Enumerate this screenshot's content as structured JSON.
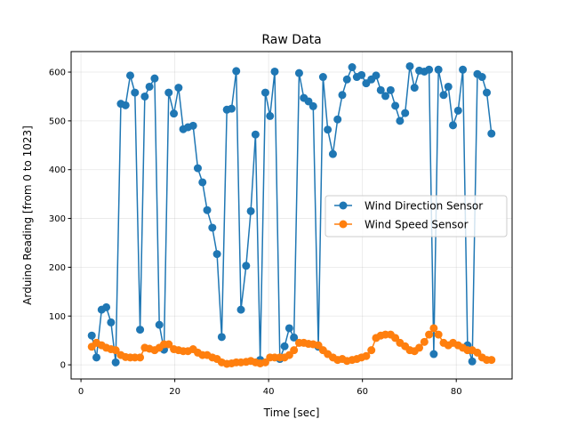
{
  "chart_data": {
    "type": "line",
    "title": "Raw Data",
    "xlabel": "Time [sec]",
    "ylabel": "Arduino Reading [from 0 to 1023]",
    "xlim": [
      -2.1,
      91.9
    ],
    "ylim": [
      -29,
      642
    ],
    "xticks": [
      0,
      20,
      40,
      60,
      80
    ],
    "yticks": [
      0,
      100,
      200,
      300,
      400,
      500,
      600
    ],
    "grid": true,
    "legend_position": "center-right",
    "x": [
      2.3,
      3.3,
      4.4,
      5.4,
      6.4,
      7.4,
      8.5,
      9.5,
      10.5,
      11.5,
      12.6,
      13.6,
      14.6,
      15.7,
      16.7,
      17.7,
      18.7,
      19.8,
      20.8,
      21.8,
      22.8,
      23.9,
      24.9,
      25.9,
      26.9,
      28.0,
      29.0,
      30.0,
      31.1,
      32.1,
      33.1,
      34.1,
      35.2,
      36.2,
      37.2,
      38.2,
      39.3,
      40.3,
      41.3,
      42.4,
      43.4,
      44.4,
      45.4,
      46.5,
      47.5,
      48.5,
      49.5,
      50.6,
      51.6,
      52.6,
      53.7,
      54.7,
      55.7,
      56.7,
      57.8,
      58.8,
      59.8,
      60.8,
      61.9,
      62.9,
      63.9,
      64.9,
      66.0,
      67.0,
      68.0,
      69.1,
      70.1,
      71.1,
      72.1,
      73.2,
      74.2,
      75.2,
      76.2,
      77.3,
      78.3,
      79.3,
      80.4,
      81.4,
      82.4,
      83.4,
      84.5,
      85.5,
      86.5,
      87.5
    ],
    "series": [
      {
        "name": "Wind Direction Sensor",
        "color": "#1f77b4",
        "values": [
          60,
          15,
          113,
          118,
          87,
          5,
          535,
          532,
          593,
          558,
          72,
          550,
          570,
          587,
          82,
          31,
          558,
          515,
          568,
          483,
          487,
          490,
          403,
          374,
          317,
          281,
          227,
          57,
          523,
          525,
          602,
          113,
          203,
          315,
          472,
          10,
          558,
          510,
          601,
          12,
          38,
          75,
          56,
          598,
          547,
          540,
          530,
          37,
          590,
          482,
          432,
          503,
          553,
          585,
          610,
          590,
          594,
          577,
          585,
          593,
          563,
          551,
          563,
          531,
          500,
          516,
          612,
          568,
          603,
          601,
          605,
          22,
          605,
          553,
          570,
          491,
          521,
          605,
          40,
          7,
          596,
          590,
          558,
          474
        ]
      },
      {
        "name": "Wind Speed Sensor",
        "color": "#ff7f0e",
        "values": [
          37,
          45,
          40,
          35,
          32,
          30,
          20,
          16,
          15,
          15,
          15,
          35,
          33,
          30,
          35,
          42,
          42,
          32,
          30,
          28,
          28,
          32,
          25,
          20,
          20,
          15,
          12,
          5,
          2,
          3,
          5,
          5,
          6,
          8,
          5,
          3,
          5,
          15,
          15,
          15,
          15,
          20,
          30,
          45,
          45,
          43,
          42,
          40,
          30,
          22,
          15,
          10,
          12,
          8,
          10,
          12,
          15,
          18,
          30,
          55,
          60,
          62,
          62,
          55,
          45,
          38,
          30,
          28,
          35,
          47,
          62,
          75,
          62,
          45,
          40,
          45,
          40,
          35,
          30,
          30,
          25,
          15,
          10,
          10
        ]
      }
    ]
  }
}
